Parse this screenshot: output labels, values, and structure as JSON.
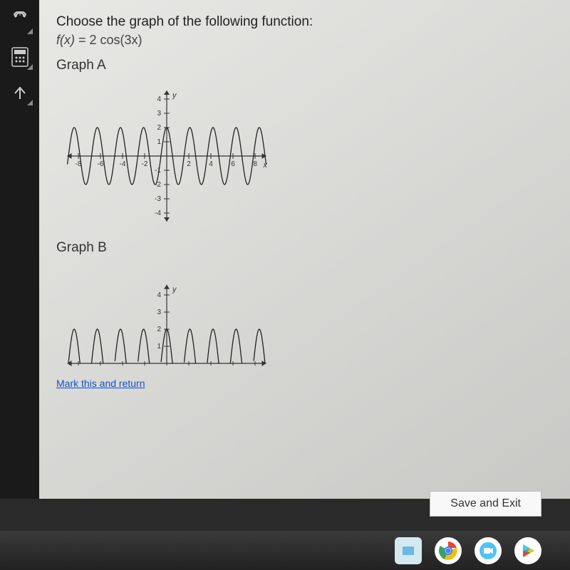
{
  "sidebar": {
    "icons": [
      "ruler-icon",
      "calculator-icon",
      "collapse-icon"
    ]
  },
  "question": {
    "prompt": "Choose the graph of the following function:",
    "formula_fx": "f(x)",
    "formula_eq": " = 2 cos(3x)"
  },
  "graphA": {
    "label": "Graph A",
    "y_ticks": [
      "4",
      "3",
      "2",
      "1",
      "-1",
      "-2",
      "-3",
      "-4"
    ],
    "x_ticks_neg": [
      "-8",
      "-6",
      "-4",
      "-2"
    ],
    "x_ticks_pos": [
      "2",
      "4",
      "6",
      "8"
    ],
    "y_axis_label": "y",
    "x_axis_label": "x",
    "amplitude": 2,
    "period": 2.094
  },
  "graphB": {
    "label": "Graph B",
    "y_ticks": [
      "4",
      "3",
      "2",
      "1"
    ],
    "y_axis_label": "y",
    "amplitude": 2,
    "period": 2.094
  },
  "link": {
    "text": "Mark this and return"
  },
  "buttons": {
    "save_exit": "Save and Exit"
  },
  "colors": {
    "bg": "#e0e0dc",
    "axis": "#333333",
    "curve": "#222222",
    "link": "#1155cc"
  },
  "taskbar": {
    "icons": [
      {
        "name": "app-icon",
        "bg": "#d4e8f0"
      },
      {
        "name": "chrome-icon",
        "bg": "#ffffff"
      },
      {
        "name": "meet-icon",
        "bg": "#ffffff"
      },
      {
        "name": "play-icon",
        "bg": "#ffffff"
      }
    ]
  }
}
